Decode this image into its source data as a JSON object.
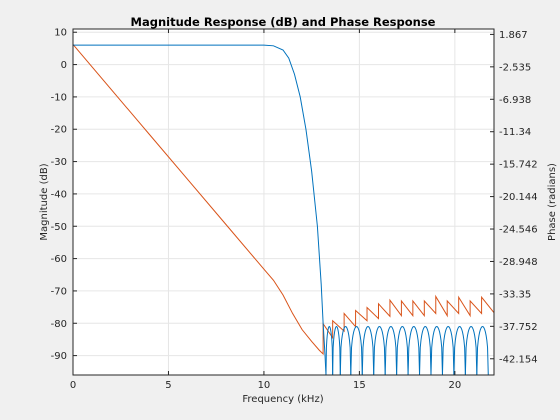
{
  "chart_data": {
    "type": "line",
    "title": "Magnitude Response (dB) and Phase Response",
    "xlabel": "Frequency (kHz)",
    "ylabel_left": "Magnitude (dB)",
    "ylabel_right": "Phase (radians)",
    "xlim": [
      0,
      22.05
    ],
    "ylim_left": [
      -96,
      11
    ],
    "ylim_right": [
      -44.357,
      2.6
    ],
    "grid": true,
    "x_ticks": [
      "0",
      "5",
      "10",
      "15",
      "20"
    ],
    "x_tick_values": [
      0,
      5,
      10,
      15,
      20
    ],
    "y_left_ticks": [
      "10",
      "0",
      "-10",
      "-20",
      "-30",
      "-40",
      "-50",
      "-60",
      "-70",
      "-80",
      "-90"
    ],
    "y_left_tick_values": [
      10,
      0,
      -10,
      -20,
      -30,
      -40,
      -50,
      -60,
      -70,
      -80,
      -90
    ],
    "y_right_ticks": [
      "1.867",
      "-2.535",
      "-6.938",
      "-11.34",
      "-15.742",
      "-20.144",
      "-24.546",
      "-28.948",
      "-33.35",
      "-37.752",
      "-42.154"
    ],
    "y_right_tick_values": [
      1.867,
      -2.535,
      -6.938,
      -11.34,
      -15.742,
      -20.144,
      -24.546,
      -28.948,
      -33.35,
      -37.752,
      -42.154
    ],
    "series": [
      {
        "axis": "left",
        "color": "#0072bd",
        "x": [
          0,
          2,
          4,
          6,
          8,
          10,
          10.5,
          11,
          11.3,
          11.6,
          11.9,
          12.2,
          12.5,
          12.8,
          13.0,
          13.1,
          13.2,
          13.25
        ],
        "y": [
          6,
          6,
          6,
          6,
          6,
          6,
          5.8,
          4.5,
          2,
          -3,
          -10,
          -20,
          -33,
          -50,
          -68,
          -80,
          -90,
          -96
        ],
        "stopband_lobes": [
          [
            13.25,
            13.6
          ],
          [
            13.6,
            14.0
          ],
          [
            14.0,
            14.55
          ],
          [
            14.55,
            15.15
          ],
          [
            15.15,
            15.75
          ],
          [
            15.75,
            16.35
          ],
          [
            16.35,
            16.95
          ],
          [
            16.95,
            17.55
          ],
          [
            17.55,
            18.15
          ],
          [
            18.15,
            18.75
          ],
          [
            18.75,
            19.35
          ],
          [
            19.35,
            19.95
          ],
          [
            19.95,
            20.55
          ],
          [
            20.55,
            21.15
          ],
          [
            21.15,
            21.75
          ]
        ],
        "stopband_lobe_peak_db": -81
      },
      {
        "axis": "right",
        "color": "#d95319",
        "x": [
          0,
          2,
          4,
          6,
          8,
          10,
          10.5,
          11,
          11.5,
          12,
          12.5,
          12.9,
          13.1
        ],
        "y": [
          0.5,
          -5.6,
          -11.7,
          -17.8,
          -23.9,
          -30.0,
          -31.5,
          -33.5,
          -36.0,
          -38.2,
          -39.8,
          -41.0,
          -41.5
        ],
        "sawtooth_x": [
          13.1,
          13.6,
          14.2,
          14.8,
          15.4,
          16.0,
          16.6,
          17.2,
          17.8,
          18.4,
          19.0,
          19.6,
          20.2,
          20.8,
          21.4,
          22.05
        ],
        "sawtooth_peak_y": [
          -37.4,
          -37.0,
          -36.0,
          -35.6,
          -35.2,
          -34.7,
          -34.2,
          -34.3,
          -34.3,
          -34.3,
          -33.7,
          -34.3,
          -33.8,
          -34.3,
          -33.8
        ],
        "sawtooth_low_y": [
          -41.0,
          -39.3,
          -38.4,
          -37.8,
          -37.0,
          -36.7,
          -36.4,
          -36.3,
          -36.3,
          -36.3,
          -36.0,
          -36.3,
          -36.0,
          -36.3,
          -36.0,
          -35.9
        ]
      }
    ]
  }
}
